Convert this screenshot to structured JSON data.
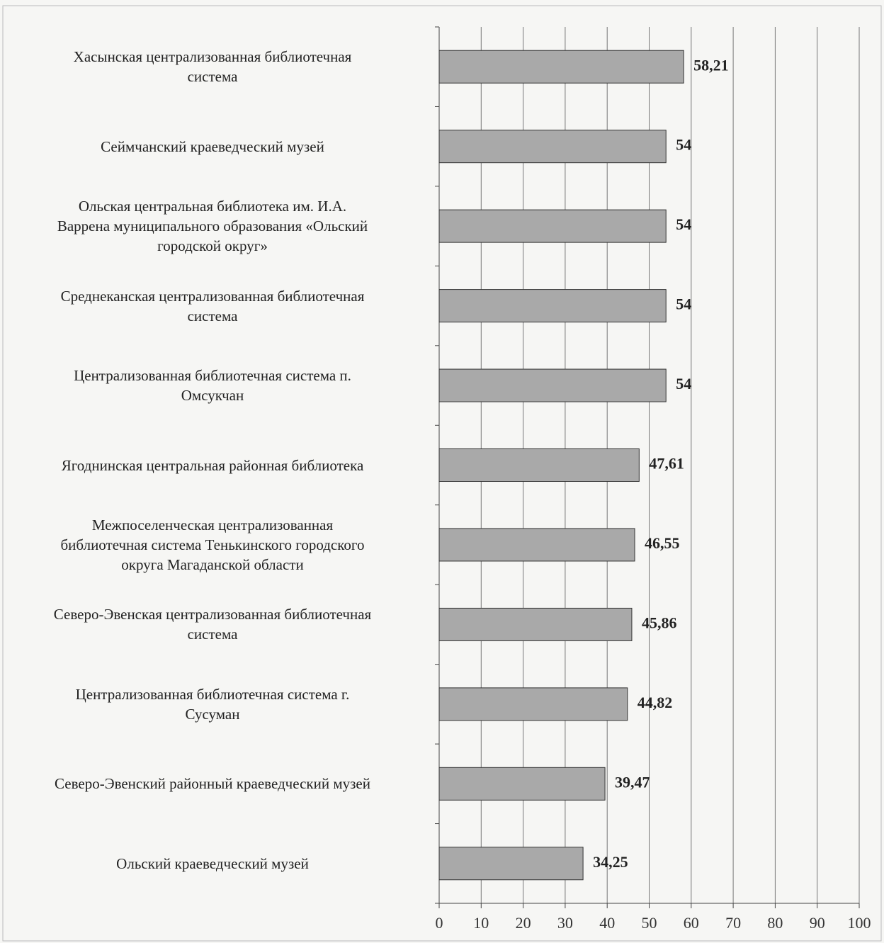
{
  "chart_data": {
    "type": "barh",
    "categories": [
      "Хасынская централизованная библиотечная\nсистема",
      "Сеймчанский краеведческий музей",
      "Ольская центральная библиотека им. И.А.\nВаррена муниципального образования «Ольский\nгородской округ»",
      "Среднеканская централизованная библиотечная\nсистема",
      "Централизованная библиотечная система п.\nОмсукчан",
      "Ягоднинская центральная районная библиотека",
      "Межпоселенческая централизованная\nбиблиотечная система Тенькинского городского\nокруга Магаданской области",
      "Северо-Эвенская централизованная библиотечная\nсистема",
      "Централизованная библиотечная система г.\nСусуман",
      "Северо-Эвенский районный краеведческий музей",
      "Ольский краеведческий музей"
    ],
    "values": [
      58.21,
      54,
      54,
      54,
      54,
      47.61,
      46.55,
      45.86,
      44.82,
      39.47,
      34.25
    ],
    "value_labels": [
      "58,21",
      "54",
      "54",
      "54",
      "54",
      "47,61",
      "46,55",
      "45,86",
      "44,82",
      "39,47",
      "34,25"
    ],
    "color": "#a9a9a9",
    "xlim": [
      0,
      100
    ],
    "xticks": [
      0,
      10,
      20,
      30,
      40,
      50,
      60,
      70,
      80,
      90,
      100
    ],
    "grid": true
  }
}
